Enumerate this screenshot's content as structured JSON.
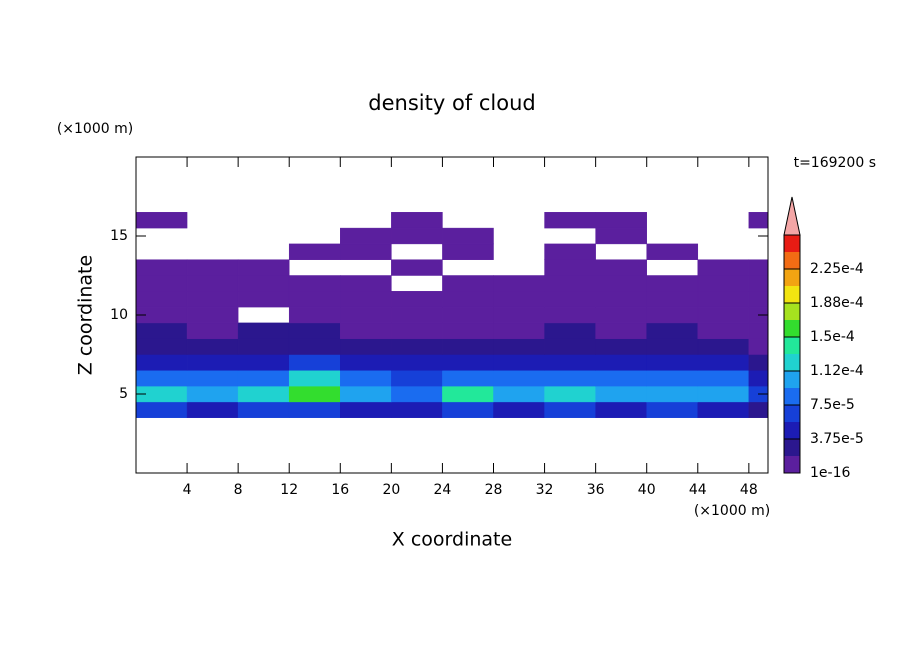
{
  "chart_data": {
    "type": "contour",
    "title": "density of cloud",
    "annotation": "t=169200 s",
    "xlabel": "X coordinate",
    "ylabel": "Z coordinate",
    "xunit": "(×1000 m)",
    "yunit": "(×1000 m)",
    "xlim": [
      0,
      49.5
    ],
    "ylim": [
      0,
      20
    ],
    "xticks": [
      4,
      8,
      12,
      16,
      20,
      24,
      28,
      32,
      36,
      40,
      44,
      48
    ],
    "yticks": [
      5,
      10,
      15
    ],
    "x": [
      2,
      6,
      10,
      14,
      18,
      22,
      26,
      30,
      34,
      38,
      42,
      46,
      50
    ],
    "z": [
      4,
      5,
      6,
      7,
      8,
      9,
      10,
      11,
      12,
      13,
      14,
      15,
      16
    ],
    "values": [
      [
        6e-05,
        5e-05,
        6e-05,
        7e-05,
        5e-05,
        4e-05,
        6e-05,
        5e-05,
        6e-05,
        5e-05,
        6e-05,
        5e-05,
        3e-05
      ],
      [
        0.00012,
        0.00011,
        0.00012,
        0.00016,
        0.00011,
        9e-05,
        0.00014,
        0.0001,
        0.00013,
        0.00011,
        0.00011,
        0.0001,
        6e-05
      ],
      [
        9e-05,
        8e-05,
        9e-05,
        0.00012,
        9e-05,
        7e-05,
        9e-05,
        8e-05,
        9e-05,
        8e-05,
        8e-05,
        8e-05,
        5e-05
      ],
      [
        4e-05,
        4e-05,
        5e-05,
        6e-05,
        4e-05,
        4e-05,
        5e-05,
        4e-05,
        5e-05,
        5e-05,
        4e-05,
        4e-05,
        2e-05
      ],
      [
        2.5e-05,
        2.2e-05,
        2.8e-05,
        3e-05,
        2.5e-05,
        2e-05,
        2.5e-05,
        2.2e-05,
        2.8e-05,
        2.5e-05,
        2.5e-05,
        2.2e-05,
        1e-05
      ],
      [
        2e-05,
        1.5e-05,
        2e-05,
        2.2e-05,
        1.5e-05,
        1.2e-05,
        1.8e-05,
        1.5e-05,
        2e-05,
        1.5e-05,
        2e-05,
        1.5e-05,
        1e-05
      ],
      [
        1.5e-05,
        8e-06,
        0,
        1e-05,
        1.2e-05,
        8e-06,
        1e-05,
        8e-06,
        1e-05,
        1e-05,
        1.2e-05,
        1e-05,
        8e-06
      ],
      [
        1.2e-05,
        8e-06,
        1e-05,
        8e-06,
        1e-05,
        8e-06,
        1e-05,
        8e-06,
        8e-06,
        1e-05,
        1e-05,
        8e-06,
        1e-05
      ],
      [
        8e-06,
        5e-06,
        8e-06,
        1e-05,
        5e-06,
        0,
        5e-06,
        8e-06,
        5e-06,
        8e-06,
        8e-06,
        5e-06,
        8e-06
      ],
      [
        5e-06,
        5e-06,
        8e-06,
        0,
        0,
        5e-06,
        0,
        0,
        5e-06,
        5e-06,
        0,
        5e-06,
        5e-06
      ],
      [
        0,
        0,
        0,
        5e-06,
        5e-06,
        0,
        5e-06,
        0,
        5e-06,
        0,
        5e-06,
        0,
        0
      ],
      [
        0,
        0,
        0,
        0,
        5e-06,
        5e-06,
        5e-06,
        0,
        0,
        5e-06,
        0,
        0,
        0
      ],
      [
        5e-06,
        0,
        0,
        0,
        0,
        5e-06,
        0,
        0,
        5e-06,
        5e-06,
        0,
        0,
        5e-06
      ]
    ],
    "colorbar": {
      "levels": [
        1e-16,
        1.875e-05,
        3.75e-05,
        5.625e-05,
        7.5e-05,
        9.375e-05,
        0.0001125,
        0.00013125,
        0.00015,
        0.00016875,
        0.0001875,
        0.00020625,
        0.000225,
        0.00024375
      ],
      "colors": [
        "#5b1f9e",
        "#2b178e",
        "#1c1cb4",
        "#1640d8",
        "#1a6cf0",
        "#1fa3ef",
        "#20d2d0",
        "#22e89a",
        "#33dd2e",
        "#a6e21f",
        "#f2e411",
        "#f2a412",
        "#f26c14",
        "#e81c14"
      ],
      "over_color": "#f4a6a6",
      "ticks": [
        {
          "value": 1e-16,
          "label": "1e-16"
        },
        {
          "value": 3.75e-05,
          "label": "3.75e-5"
        },
        {
          "value": 7.5e-05,
          "label": "7.5e-5"
        },
        {
          "value": 0.0001125,
          "label": "1.12e-4"
        },
        {
          "value": 0.00015,
          "label": "1.5e-4"
        },
        {
          "value": 0.0001875,
          "label": "1.88e-4"
        },
        {
          "value": 0.000225,
          "label": "2.25e-4"
        }
      ]
    }
  }
}
